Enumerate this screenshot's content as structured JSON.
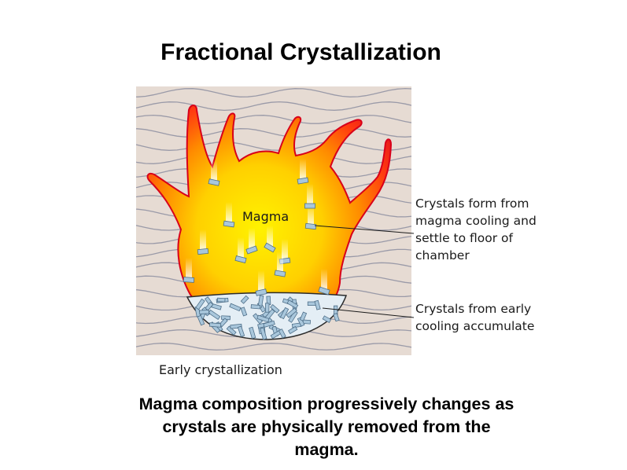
{
  "title": "Fractional Crystallization",
  "diagram": {
    "magma_label": "Magma",
    "callout_top": [
      "Crystals form from",
      "magma cooling and",
      "settle to floor of",
      "chamber"
    ],
    "callout_bottom": [
      "Crystals from early",
      "cooling accumulate"
    ],
    "figure_caption": "Early crystallization"
  },
  "caption": [
    "Magma composition progressively changes as",
    "crystals are physically removed from the",
    "magma."
  ],
  "colors": {
    "rock_background": "#e6dbd3",
    "rock_lines": "#9a9aa8",
    "magma_outer": "#e0101e",
    "magma_mid": "#ff8a00",
    "magma_core": "#fff000",
    "crystal_fill": "#a9c7dc",
    "crystal_stroke": "#4f6f89",
    "cumulate_floor": "#e4eef5"
  },
  "icons": {
    "crystal": "crystal-icon"
  }
}
